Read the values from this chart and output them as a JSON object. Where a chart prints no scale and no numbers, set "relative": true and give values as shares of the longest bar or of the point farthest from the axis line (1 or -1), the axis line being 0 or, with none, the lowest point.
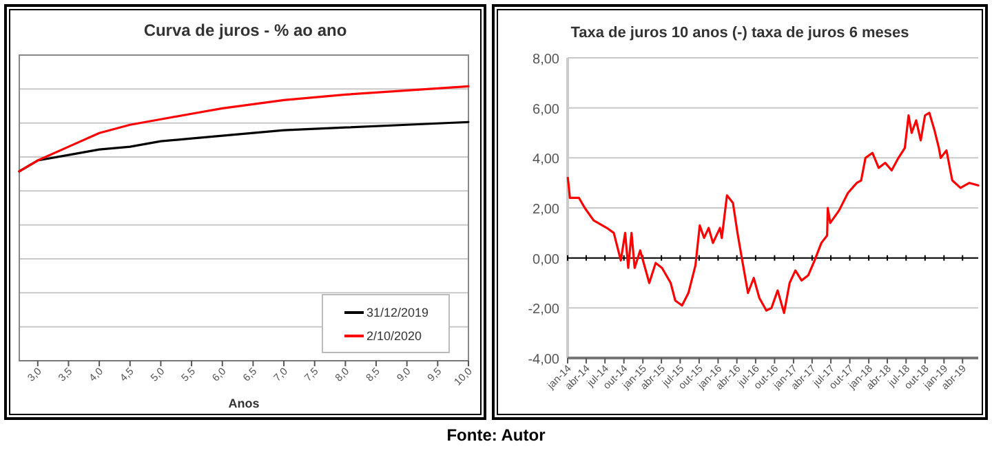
{
  "chart_data": [
    {
      "type": "line",
      "title": "Curva de juros - % ao ano",
      "xlabel": "Anos",
      "relative": true,
      "xlim": [
        2.7,
        10
      ],
      "xticks": [
        {
          "value": 3,
          "label": "3,0"
        },
        {
          "value": 3.5,
          "label": "3,5"
        },
        {
          "value": 4,
          "label": "4,0"
        },
        {
          "value": 4.5,
          "label": "4,5"
        },
        {
          "value": 5,
          "label": "5,0"
        },
        {
          "value": 5.5,
          "label": "5,5"
        },
        {
          "value": 6,
          "label": "6,0"
        },
        {
          "value": 6.5,
          "label": "6,5"
        },
        {
          "value": 7,
          "label": "7,0"
        },
        {
          "value": 7.5,
          "label": "7,5"
        },
        {
          "value": 8,
          "label": "8,0"
        },
        {
          "value": 8.5,
          "label": "8,5"
        },
        {
          "value": 9,
          "label": "9,0"
        },
        {
          "value": 9.5,
          "label": "9,5"
        },
        {
          "value": 10,
          "label": "10,0"
        }
      ],
      "x": [
        2.7,
        3,
        3.5,
        4,
        4.5,
        5,
        5.5,
        6,
        7,
        8,
        9,
        10
      ],
      "grid": true,
      "tick_labels": "x",
      "legend": "bottom right",
      "series": [
        {
          "name": "31/12/2019",
          "color": "#000000",
          "values": [
            0.69,
            0.73,
            0.75,
            0.77,
            0.78,
            0.8,
            0.81,
            0.82,
            0.84,
            0.85,
            0.86,
            0.87
          ]
        },
        {
          "name": "2/10/2020",
          "color": "#ff0000",
          "values": [
            0.69,
            0.73,
            0.78,
            0.83,
            0.86,
            0.88,
            0.9,
            0.92,
            0.95,
            0.97,
            0.985,
            1
          ]
        }
      ]
    },
    {
      "type": "line",
      "title": "Taxa de juros 10 anos (-) taxa de juros 6 meses",
      "ylim": [
        -4,
        8
      ],
      "yticks": [
        {
          "value": -4,
          "label": "-4,00"
        },
        {
          "value": -2,
          "label": "-2,00"
        },
        {
          "value": 0,
          "label": "0,00"
        },
        {
          "value": 2,
          "label": "2,00"
        },
        {
          "value": 4,
          "label": "4,00"
        },
        {
          "value": 6,
          "label": "6,00"
        },
        {
          "value": 8,
          "label": "8,00"
        }
      ],
      "xlim": [
        "2014-01-01",
        "2019-06-16"
      ],
      "xticks": [
        {
          "value": "2014-01",
          "label": "jan-14"
        },
        {
          "value": "2014-04",
          "label": "abr-14"
        },
        {
          "value": "2014-07",
          "label": "jul-14"
        },
        {
          "value": "2014-10",
          "label": "out-14"
        },
        {
          "value": "2015-01",
          "label": "jan-15"
        },
        {
          "value": "2015-04",
          "label": "abr-15"
        },
        {
          "value": "2015-07",
          "label": "jul-15"
        },
        {
          "value": "2015-10",
          "label": "out-15"
        },
        {
          "value": "2016-01",
          "label": "jan-16"
        },
        {
          "value": "2016-04",
          "label": "abr-16"
        },
        {
          "value": "2016-07",
          "label": "jul-16"
        },
        {
          "value": "2016-10",
          "label": "out-16"
        },
        {
          "value": "2017-01",
          "label": "jan-17"
        },
        {
          "value": "2017-04",
          "label": "abr-17"
        },
        {
          "value": "2017-07",
          "label": "jul-17"
        },
        {
          "value": "2017-10",
          "label": "out-17"
        },
        {
          "value": "2018-01",
          "label": "jan-18"
        },
        {
          "value": "2018-04",
          "label": "abr-18"
        },
        {
          "value": "2018-07",
          "label": "jul-18"
        },
        {
          "value": "2018-10",
          "label": "out-18"
        },
        {
          "value": "2019-01",
          "label": "jan-19"
        },
        {
          "value": "2019-04",
          "label": "abr-19"
        }
      ],
      "grid": "y",
      "ref_lines": [
        {
          "axis": "y",
          "value": 0,
          "color": "#000000"
        }
      ],
      "annotations": [
        "Fonte: Autor"
      ],
      "x": [
        "2014-01-02",
        "2014-01-12",
        "2014-02-25",
        "2014-03-25",
        "2014-05-07",
        "2014-07-10",
        "2014-08-13",
        "2014-09-16",
        "2014-10-07",
        "2014-10-22",
        "2014-11-07",
        "2014-11-22",
        "2014-12-19",
        "2015-02-01",
        "2015-03-04",
        "2015-04-04",
        "2015-05-16",
        "2015-06-07",
        "2015-07-10",
        "2015-08-10",
        "2015-09-13",
        "2015-10-04",
        "2015-10-25",
        "2015-11-16",
        "2015-12-07",
        "2016-01-10",
        "2016-01-19",
        "2016-02-13",
        "2016-03-13",
        "2016-04-04",
        "2016-04-25",
        "2016-05-25",
        "2016-06-22",
        "2016-07-19",
        "2016-08-22",
        "2016-09-16",
        "2016-10-16",
        "2016-11-16",
        "2016-12-13",
        "2017-01-10",
        "2017-02-09",
        "2017-03-13",
        "2017-04-13",
        "2017-05-16",
        "2017-06-13",
        "2017-06-16",
        "2017-06-28",
        "2017-08-10",
        "2017-09-22",
        "2017-11-04",
        "2017-11-25",
        "2017-12-16",
        "2018-01-19",
        "2018-02-18",
        "2018-03-22",
        "2018-04-22",
        "2018-05-25",
        "2018-06-25",
        "2018-07-13",
        "2018-07-28",
        "2018-08-19",
        "2018-09-10",
        "2018-10-01",
        "2018-10-22",
        "2018-11-16",
        "2018-12-07",
        "2018-12-16",
        "2019-01-13",
        "2019-02-10",
        "2019-03-22",
        "2019-05-04",
        "2019-06-16"
      ],
      "series": [
        {
          "color": "#ff0000",
          "values": [
            3.2,
            2.4,
            2.4,
            2.0,
            1.5,
            1.2,
            1.0,
            -0.1,
            1.0,
            -0.4,
            1.0,
            -0.4,
            0.3,
            -1.0,
            -0.2,
            -0.4,
            -1.0,
            -1.7,
            -1.9,
            -1.4,
            -0.3,
            1.3,
            0.8,
            1.2,
            0.6,
            1.2,
            0.8,
            2.5,
            2.2,
            1.0,
            0.0,
            -1.4,
            -0.8,
            -1.6,
            -2.1,
            -2.0,
            -1.3,
            -2.2,
            -1.0,
            -0.5,
            -0.9,
            -0.7,
            -0.1,
            0.6,
            0.9,
            2.0,
            1.4,
            1.9,
            2.6,
            3.0,
            3.1,
            4.0,
            4.2,
            3.6,
            3.8,
            3.5,
            4.0,
            4.4,
            5.7,
            5.0,
            5.5,
            4.7,
            5.7,
            5.8,
            5.1,
            4.4,
            4.0,
            4.3,
            3.1,
            2.8,
            3.0,
            2.9
          ]
        }
      ]
    }
  ]
}
